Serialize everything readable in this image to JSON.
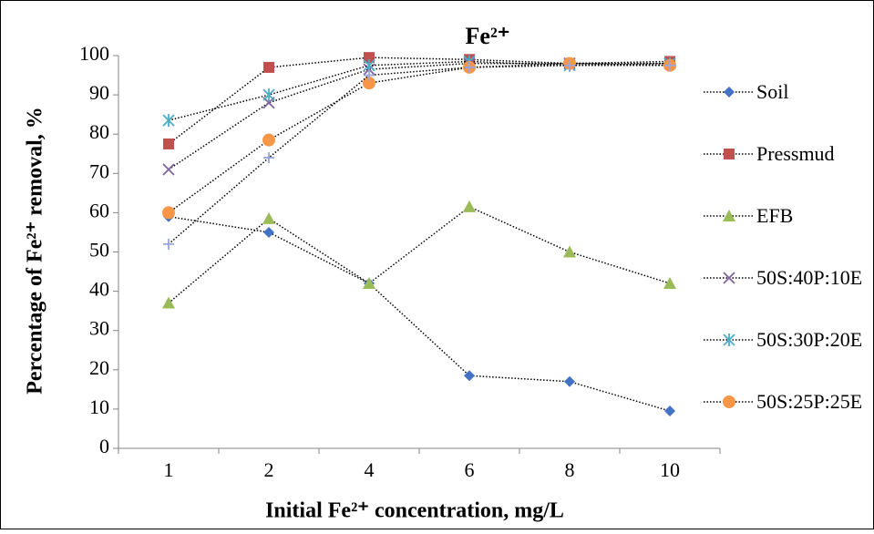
{
  "chart_data": {
    "type": "line",
    "title": "Fe²⁺",
    "x_label": "Initial Fe²⁺ concentration, mg/L",
    "y_label": "Percentage of Fe²⁺ removal, %",
    "categories": [
      "1",
      "2",
      "4",
      "6",
      "8",
      "10"
    ],
    "ylim": [
      0,
      100
    ],
    "yticks": [
      0,
      10,
      20,
      30,
      40,
      50,
      60,
      70,
      80,
      90,
      100
    ],
    "grid": false,
    "legend": "right",
    "series": [
      {
        "name": "Soil",
        "color": "#4472c4",
        "marker": "diamond",
        "values": [
          59,
          55,
          42,
          18.5,
          17,
          9.5
        ]
      },
      {
        "name": "Pressmud",
        "color": "#c0504d",
        "marker": "square",
        "values": [
          77.5,
          97,
          99.5,
          99,
          98,
          98.5
        ]
      },
      {
        "name": "EFB",
        "color": "#9bbb59",
        "marker": "triangle",
        "values": [
          37,
          58.5,
          42,
          61.5,
          50,
          42
        ]
      },
      {
        "name": "50S:40P:10E",
        "color": "#8064a2",
        "marker": "x",
        "values": [
          71,
          88,
          96.5,
          98,
          98,
          98
        ]
      },
      {
        "name": "50S:30P:20E",
        "color": "#4bacc6",
        "marker": "asterisk",
        "values": [
          83.5,
          90,
          97.5,
          98.5,
          97.5,
          98
        ]
      },
      {
        "name": "50S:25P:25E",
        "color": "#f79646",
        "marker": "circle",
        "values": [
          60,
          78.5,
          93,
          97,
          98,
          97.5
        ]
      },
      {
        "color": "#9aa6d8",
        "marker": "plus",
        "values": [
          52,
          74,
          95,
          97,
          97.5,
          97.5
        ]
      }
    ]
  }
}
